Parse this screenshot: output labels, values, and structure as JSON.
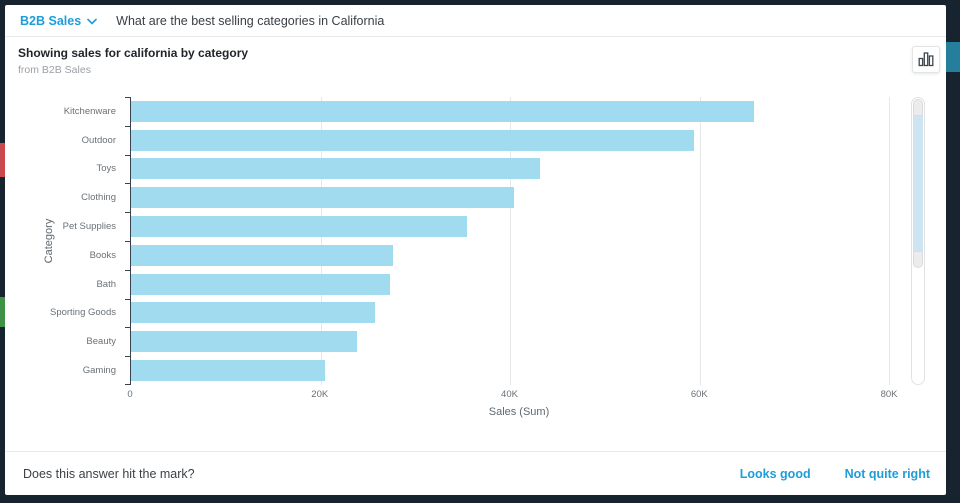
{
  "window": {
    "frame_color": "#17242f",
    "left_accent_red": "#c9494f",
    "left_accent_green": "#3f9146",
    "right_accent_teal": "#257f9c"
  },
  "accent_color": "#1d9ed9",
  "topbar": {
    "dataset_label": "B2B Sales",
    "question": "What are the best selling categories in California"
  },
  "answer": {
    "title": "Showing sales for california by category",
    "subtitle": "from B2B Sales"
  },
  "chart_data": {
    "type": "bar",
    "orientation": "horizontal",
    "title": "Showing sales for california by category",
    "categories": [
      "Kitchenware",
      "Outdoor",
      "Toys",
      "Clothing",
      "Pet Supplies",
      "Books",
      "Bath",
      "Sporting Goods",
      "Beauty",
      "Gaming"
    ],
    "values": [
      65800,
      59400,
      43200,
      40400,
      35500,
      27700,
      27300,
      25700,
      23800,
      20500
    ],
    "xlabel": "Sales (Sum)",
    "ylabel": "Category",
    "x_ticks": [
      {
        "value": 0,
        "label": "0"
      },
      {
        "value": 20000,
        "label": "20K"
      },
      {
        "value": 40000,
        "label": "40K"
      },
      {
        "value": 60000,
        "label": "60K"
      },
      {
        "value": 80000,
        "label": "80K"
      }
    ],
    "xlim": [
      0,
      82000
    ],
    "bar_color": "#a0dbef",
    "grid": "vertical-only",
    "legend": "none"
  },
  "scrollbar": {
    "range_start": 0.0625,
    "range_end": 0.531,
    "range_color": "#cde4f2"
  },
  "footer": {
    "prompt": "Does this answer hit the mark?",
    "positive_label": "Looks good",
    "negative_label": "Not quite right"
  }
}
